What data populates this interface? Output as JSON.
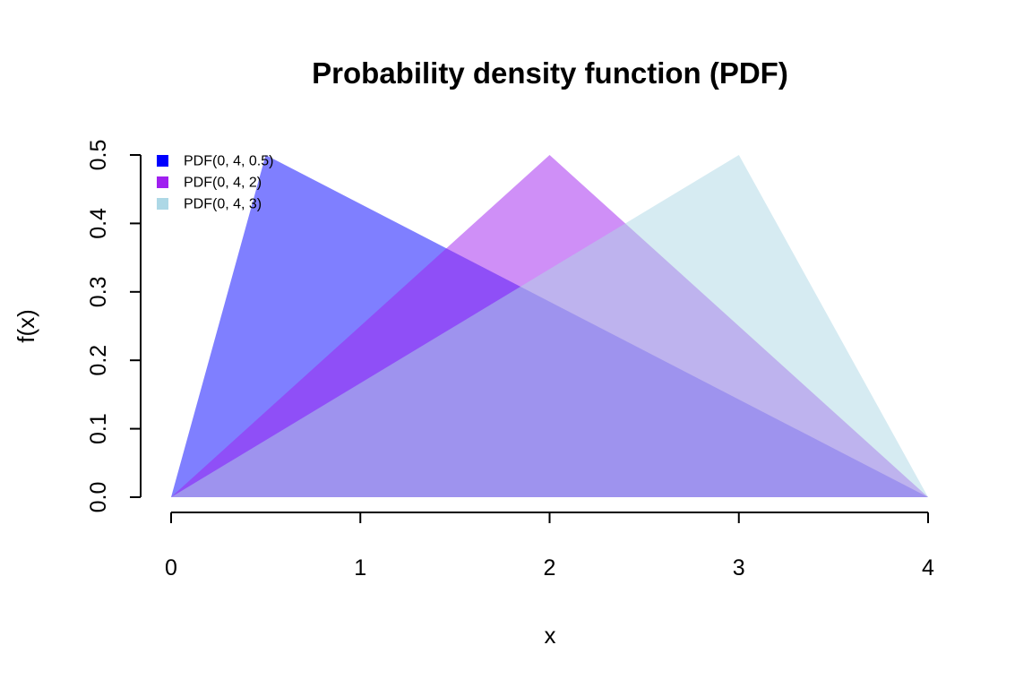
{
  "chart_data": {
    "type": "area",
    "title": "Probability density function (PDF)",
    "xlabel": "x",
    "ylabel": "f(x)",
    "xlim": [
      0,
      4
    ],
    "ylim": [
      0,
      0.5
    ],
    "x_ticks": [
      "0",
      "1",
      "2",
      "3",
      "4"
    ],
    "y_ticks": [
      "0.0",
      "0.1",
      "0.2",
      "0.3",
      "0.4",
      "0.5"
    ],
    "grid": false,
    "legend_position": "top-left",
    "series": [
      {
        "name": "PDF(0, 4, 0.5)",
        "color": "#0000ff",
        "opacity": 0.5,
        "x": [
          0,
          0.5,
          4
        ],
        "y": [
          0,
          0.5,
          0
        ]
      },
      {
        "name": "PDF(0, 4, 2)",
        "color": "#a020f0",
        "opacity": 0.5,
        "x": [
          0,
          2,
          4
        ],
        "y": [
          0,
          0.5,
          0
        ]
      },
      {
        "name": "PDF(0, 4, 3)",
        "color": "#add8e6",
        "opacity": 0.5,
        "x": [
          0,
          3,
          4
        ],
        "y": [
          0,
          0.5,
          0
        ]
      }
    ]
  }
}
